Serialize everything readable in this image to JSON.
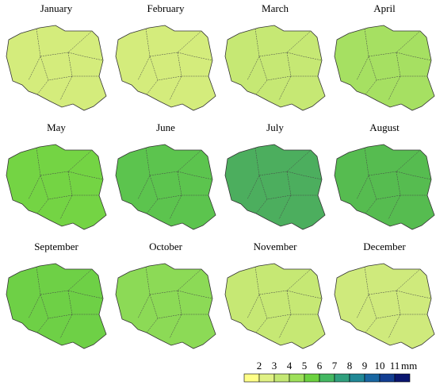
{
  "maps": [
    {
      "title": "January",
      "color": "#d4ec7c"
    },
    {
      "title": "February",
      "color": "#d4ec7c"
    },
    {
      "title": "March",
      "color": "#c6e874"
    },
    {
      "title": "April",
      "color": "#a6e062"
    },
    {
      "title": "May",
      "color": "#74d444"
    },
    {
      "title": "June",
      "color": "#5cc44e"
    },
    {
      "title": "July",
      "color": "#4cae5e"
    },
    {
      "title": "August",
      "color": "#56bc50"
    },
    {
      "title": "September",
      "color": "#6ed046"
    },
    {
      "title": "October",
      "color": "#8cda56"
    },
    {
      "title": "November",
      "color": "#c6e874"
    },
    {
      "title": "December",
      "color": "#cfea7c"
    }
  ],
  "legend": {
    "ticks": [
      2,
      3,
      4,
      5,
      6,
      7,
      8,
      9,
      10,
      11
    ],
    "unit": "mm",
    "colors": [
      "#ffff88",
      "#e0f184",
      "#c4e874",
      "#9ee05a",
      "#6cd240",
      "#44b862",
      "#30a07e",
      "#208896",
      "#1866a2",
      "#123e92",
      "#0a1670"
    ]
  }
}
